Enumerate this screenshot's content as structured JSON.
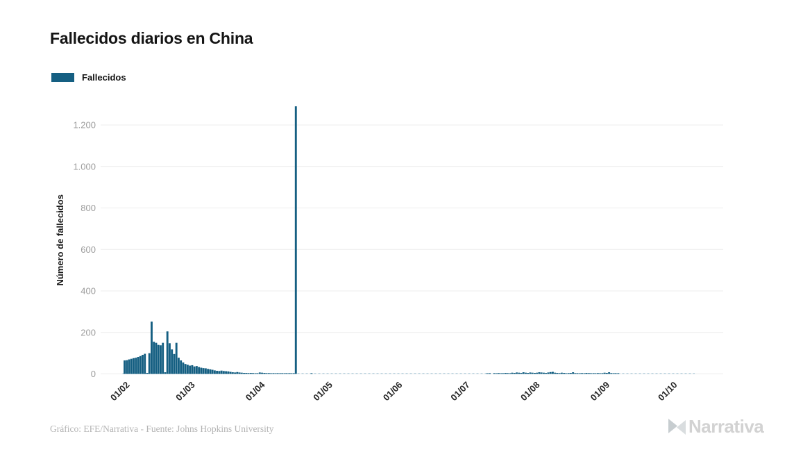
{
  "title": "Fallecidos diarios en China",
  "legend": {
    "label": "Fallecidos",
    "color": "#155f82"
  },
  "footer": {
    "credit": "Gráfico: EFE/Narrativa - Fuente: Johns Hopkins University"
  },
  "logo": {
    "text": "Narrativa",
    "icon": "narrativa-n-icon"
  },
  "chart_data": {
    "type": "bar",
    "title": "Fallecidos diarios en China",
    "series_name": "Fallecidos",
    "bar_color": "#155f82",
    "xlabel": "",
    "ylabel": "Número de fallecidos",
    "ylim": [
      0,
      1350
    ],
    "grid": "horizontal",
    "legend_position": "top-left",
    "y_ticks": [
      0,
      200,
      400,
      600,
      800,
      1000,
      1200
    ],
    "y_tick_labels": [
      "0",
      "200",
      "400",
      "600",
      "800",
      "1.000",
      "1.200"
    ],
    "x_tick_labels": [
      "01/02",
      "01/03",
      "01/04",
      "01/05",
      "01/06",
      "01/07",
      "01/08",
      "01/09",
      "01/10"
    ],
    "x_tick_day_index": [
      0,
      29,
      60,
      90,
      121,
      151,
      182,
      213,
      243
    ],
    "start_date": "2020-02-01",
    "peak": {
      "date": "2020-04-17",
      "value": 1290
    },
    "values": [
      65,
      66,
      70,
      73,
      76,
      78,
      82,
      86,
      92,
      97,
      5,
      100,
      252,
      155,
      150,
      140,
      138,
      150,
      8,
      205,
      148,
      118,
      96,
      150,
      78,
      65,
      55,
      48,
      44,
      40,
      42,
      36,
      38,
      33,
      30,
      28,
      27,
      24,
      22,
      20,
      17,
      15,
      14,
      16,
      14,
      13,
      12,
      10,
      8,
      7,
      9,
      7,
      6,
      5,
      5,
      4,
      5,
      4,
      3,
      2,
      7,
      6,
      5,
      4,
      4,
      3,
      2,
      2,
      1,
      2,
      1,
      1,
      2,
      1,
      1,
      1,
      1290,
      0,
      0,
      0,
      0,
      0,
      0,
      1,
      0,
      0,
      0,
      0,
      0,
      0,
      0,
      0,
      0,
      0,
      0,
      0,
      0,
      0,
      0,
      0,
      0,
      0,
      0,
      0,
      0,
      0,
      0,
      0,
      0,
      0,
      0,
      0,
      0,
      0,
      0,
      0,
      0,
      0,
      0,
      0,
      0,
      0,
      0,
      0,
      0,
      0,
      0,
      0,
      0,
      0,
      0,
      0,
      0,
      0,
      0,
      0,
      0,
      0,
      0,
      0,
      0,
      0,
      0,
      0,
      0,
      0,
      0,
      0,
      0,
      0,
      0,
      0,
      0,
      0,
      0,
      0,
      0,
      0,
      0,
      0,
      0,
      2,
      1,
      0,
      3,
      2,
      4,
      3,
      2,
      5,
      4,
      3,
      6,
      5,
      7,
      6,
      5,
      8,
      6,
      5,
      7,
      6,
      5,
      6,
      8,
      7,
      6,
      5,
      7,
      9,
      10,
      6,
      5,
      4,
      6,
      5,
      3,
      4,
      5,
      8,
      4,
      3,
      2,
      4,
      3,
      5,
      4,
      3,
      2,
      3,
      4,
      3,
      2,
      6,
      5,
      8,
      4,
      3,
      2,
      2,
      0,
      0,
      0,
      0,
      0,
      0,
      0,
      0,
      0,
      0,
      0,
      0,
      0,
      0,
      0,
      0,
      0,
      0,
      0,
      0,
      0,
      0,
      0,
      0,
      0,
      0,
      0,
      0,
      0,
      0,
      0,
      0,
      0,
      0
    ]
  }
}
